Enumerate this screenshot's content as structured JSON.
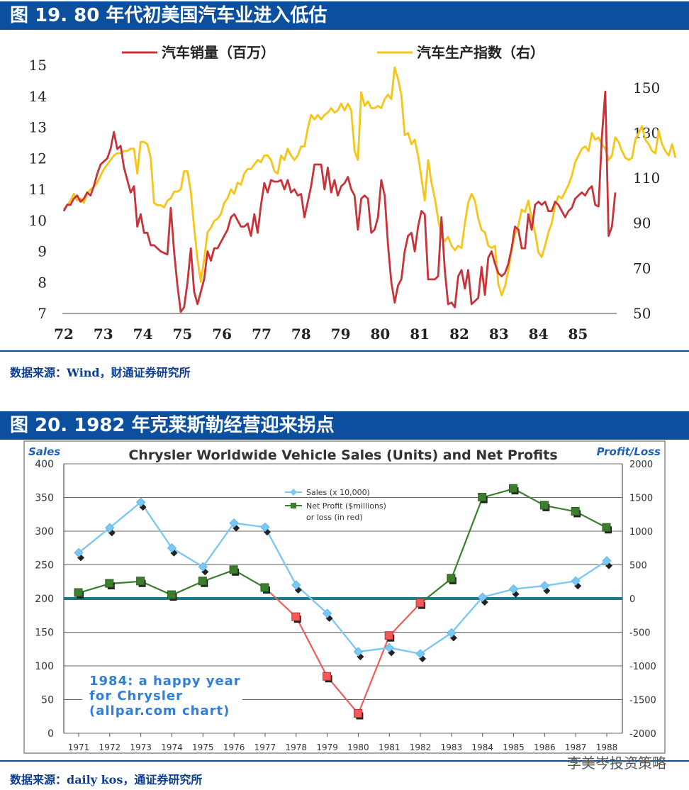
{
  "figure19": {
    "header": "图 19. 80 年代初美国汽车业进入低估",
    "source": "数据来源：Wind，财通证券研究所"
  },
  "figure20": {
    "header": "图 20. 1982 年克莱斯勒经营迎来拐点",
    "source": "数据来源：daily kos，通证券研究所"
  },
  "watermark": "李美岑投资策略",
  "chart_data": [
    {
      "type": "line",
      "title": "",
      "series": [
        {
          "name": "汽车销量（百万）",
          "axis": "left",
          "color": "#c8333a",
          "values": [
            10.3,
            10.5,
            10.5,
            10.7,
            10.8,
            10.6,
            10.7,
            10.9,
            10.8,
            11.1,
            11.5,
            11.8,
            11.9,
            12.0,
            12.3,
            12.85,
            12.3,
            12.4,
            11.7,
            11.3,
            10.9,
            11.1,
            9.8,
            10.2,
            9.6,
            9.6,
            9.2,
            9.2,
            9.1,
            9.0,
            8.95,
            8.9,
            10.4,
            9.0,
            7.9,
            7.05,
            7.2,
            8.0,
            9.1,
            7.7,
            7.3,
            7.7,
            8.1,
            9.0,
            8.7,
            9.1,
            9.1,
            9.3,
            9.5,
            9.7,
            10.1,
            10.2,
            10.0,
            9.8,
            9.8,
            9.9,
            9.5,
            10.2,
            9.6,
            10.5,
            11.2,
            10.9,
            11.3,
            11.25,
            11.25,
            11.3,
            11.0,
            11.3,
            10.9,
            11.0,
            10.8,
            10.85,
            10.1,
            10.6,
            11.1,
            11.8,
            11.8,
            11.8,
            11.0,
            11.7,
            10.9,
            11.3,
            10.8,
            11.1,
            11.2,
            11.4,
            11.0,
            10.8,
            9.7,
            10.7,
            10.8,
            10.7,
            9.6,
            9.7,
            10.1,
            11.3,
            10.8,
            9.2,
            8.0,
            7.35,
            7.9,
            8.1,
            9.0,
            9.5,
            9.6,
            9.0,
            9.8,
            10.3,
            10.2,
            8.1,
            8.1,
            8.1,
            8.2,
            10.1,
            8.4,
            7.3,
            7.35,
            7.2,
            8.2,
            8.4,
            7.8,
            8.4,
            7.3,
            7.4,
            7.5,
            8.5,
            7.6,
            8.8,
            9.0,
            8.6,
            8.3,
            8.2,
            8.3,
            8.6,
            9.1,
            9.8,
            9.7,
            9.1,
            9.1,
            10.2,
            9.7,
            10.5,
            10.6,
            10.5,
            10.6,
            10.3,
            10.3,
            10.6,
            10.5,
            10.3,
            10.1,
            10.3,
            10.4,
            10.7,
            10.8,
            10.9,
            10.8,
            11.0,
            11.1,
            10.5,
            10.45,
            12.7,
            14.15,
            9.5,
            9.8,
            10.9
          ]
        },
        {
          "name": "汽车生产指数（右）",
          "axis": "right",
          "color": "#f5c518",
          "values": [
            96,
            98,
            100,
            103,
            100,
            101,
            99,
            103,
            105,
            106,
            108,
            111,
            114,
            116,
            118,
            120,
            121,
            121,
            122,
            122,
            123,
            123,
            112,
            126,
            126,
            125,
            119,
            99,
            98,
            98,
            97,
            100,
            101,
            104,
            104,
            105,
            113,
            113,
            104,
            88,
            74,
            64,
            74,
            86,
            88,
            91,
            92,
            94,
            99,
            101,
            105,
            103,
            108,
            107,
            112,
            114,
            114,
            116,
            118,
            117,
            120,
            120,
            118,
            113,
            112,
            120,
            118,
            123,
            120,
            118,
            120,
            124,
            124,
            132,
            138,
            136,
            138,
            136,
            138,
            139,
            141,
            139,
            140,
            143,
            140,
            143,
            140,
            122,
            118,
            148,
            142,
            144,
            141,
            141,
            142,
            141,
            145,
            147,
            145,
            159,
            154,
            147,
            129,
            130,
            125,
            127,
            120,
            110,
            100,
            118,
            108,
            101,
            92,
            84,
            82,
            84,
            80,
            78,
            80,
            79,
            90,
            99,
            103,
            100,
            92,
            87,
            86,
            80,
            79,
            80,
            63,
            58,
            62,
            69,
            78,
            85,
            89,
            96,
            95,
            100,
            92,
            86,
            77,
            75,
            80,
            86,
            90,
            98,
            102,
            101,
            104,
            107,
            111,
            117,
            120,
            123,
            124,
            122,
            130,
            127,
            128,
            125,
            123,
            118,
            120,
            128,
            126,
            122,
            119,
            118,
            119,
            127,
            130,
            133,
            127,
            125,
            122,
            121,
            131,
            125,
            122,
            120,
            125,
            119
          ],
          "note": "right axis values converted to index units"
        }
      ],
      "x_tick_labels": [
        "72",
        "73",
        "74",
        "75",
        "76",
        "77",
        "78",
        "79",
        "80",
        "81",
        "82",
        "83",
        "84",
        "85"
      ],
      "ylim_left": [
        7,
        15
      ],
      "yticks_left": [
        7,
        8,
        9,
        10,
        11,
        12,
        13,
        14,
        15
      ],
      "ylim_right": [
        50,
        160
      ],
      "yticks_right": [
        50,
        70,
        90,
        110,
        130,
        150
      ],
      "legend": "top"
    },
    {
      "type": "line",
      "title": "Chrysler Worldwide Vehicle Sales (Units) and Net Profits",
      "ylabel_left": "Sales",
      "ylabel_right": "Profit/Loss",
      "categories": [
        "1971",
        "1972",
        "1973",
        "1974",
        "1975",
        "1976",
        "1977",
        "1978",
        "1979",
        "1980",
        "1981",
        "1982",
        "1983",
        "1984",
        "1985",
        "1986",
        "1987",
        "1988"
      ],
      "series": [
        {
          "name": "Sales (x 10,000)",
          "axis": "left",
          "color": "#7cc8f5",
          "values": [
            268,
            305,
            343,
            275,
            247,
            312,
            306,
            220,
            178,
            121,
            127,
            118,
            149,
            202,
            214,
            219,
            226,
            256
          ]
        },
        {
          "name": "Net Profit ($millions) or loss (in red)",
          "axis": "right",
          "color": "#3b7f2e",
          "loss_color": "#f05a5a",
          "values": [
            84,
            220,
            255,
            52,
            255,
            423,
            158,
            -275,
            -1160,
            -1710,
            -555,
            -70,
            296,
            1500,
            1630,
            1380,
            1290,
            1050
          ]
        }
      ],
      "ylim_left": [
        0,
        400
      ],
      "yticks_left": [
        0,
        50,
        100,
        150,
        200,
        250,
        300,
        350,
        400
      ],
      "ylim_right": [
        -2000,
        2000
      ],
      "yticks_right": [
        -2000,
        -1500,
        -1000,
        -500,
        0,
        500,
        1000,
        1500,
        2000
      ],
      "legend": "top-center",
      "annotation": [
        "1984: a happy year",
        "for Chrysler",
        "(allpar.com chart)"
      ]
    }
  ]
}
